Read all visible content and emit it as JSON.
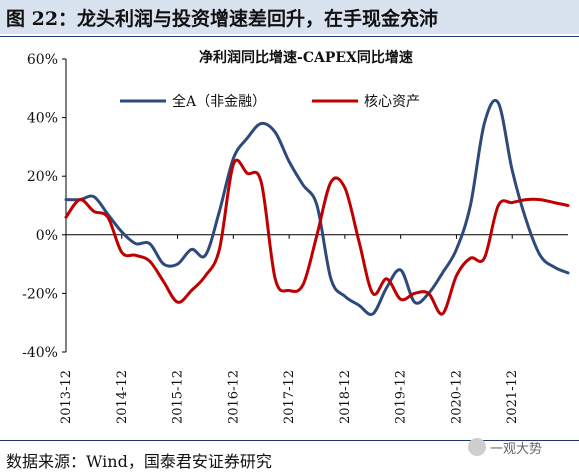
{
  "header": {
    "title": "图 22：龙头利润与投资增速差回升，在手现金充沛"
  },
  "source": "数据来源：Wind，国泰君安证券研究",
  "watermark": "一观大势",
  "colors": {
    "series_a": "#2e4a7a",
    "series_b": "#c00000",
    "title_bg": "#d9e2ef"
  },
  "chart_data": {
    "type": "line",
    "title": "净利润同比增速-CAPEX同比增速",
    "xlabel": "",
    "ylabel": "",
    "ylim": [
      -0.4,
      0.6
    ],
    "yticks": [
      -0.4,
      -0.2,
      0.0,
      0.2,
      0.4,
      0.6
    ],
    "ytick_labels": [
      "-40%",
      "-20%",
      "0%",
      "20%",
      "40%",
      "60%"
    ],
    "xticks": [
      "2013-12",
      "2014-12",
      "2015-12",
      "2016-12",
      "2017-12",
      "2018-12",
      "2019-12",
      "2020-12",
      "2021-12"
    ],
    "xlim": [
      2013.92,
      2022.92
    ],
    "grid": false,
    "legend": {
      "position": "top"
    },
    "series": [
      {
        "name": "全A（非金融）",
        "color": "#2e4a7a",
        "x": [
          2013.92,
          2014.17,
          2014.42,
          2014.67,
          2014.92,
          2015.17,
          2015.42,
          2015.67,
          2015.92,
          2016.17,
          2016.42,
          2016.67,
          2016.92,
          2017.17,
          2017.42,
          2017.67,
          2017.92,
          2018.17,
          2018.42,
          2018.67,
          2018.92,
          2019.17,
          2019.42,
          2019.67,
          2019.92,
          2020.17,
          2020.42,
          2020.67,
          2020.92,
          2021.17,
          2021.42,
          2021.67,
          2021.92,
          2022.17,
          2022.42,
          2022.67,
          2022.92
        ],
        "y": [
          0.12,
          0.12,
          0.13,
          0.07,
          0.01,
          -0.03,
          -0.03,
          -0.1,
          -0.1,
          -0.05,
          -0.07,
          0.08,
          0.26,
          0.33,
          0.38,
          0.35,
          0.25,
          0.17,
          0.1,
          -0.15,
          -0.21,
          -0.24,
          -0.27,
          -0.18,
          -0.12,
          -0.23,
          -0.2,
          -0.13,
          -0.05,
          0.1,
          0.38,
          0.45,
          0.22,
          0.05,
          -0.07,
          -0.11,
          -0.13
        ]
      },
      {
        "name": "核心资产",
        "color": "#c00000",
        "x": [
          2013.92,
          2014.17,
          2014.42,
          2014.67,
          2014.92,
          2015.17,
          2015.42,
          2015.67,
          2015.92,
          2016.17,
          2016.42,
          2016.67,
          2016.92,
          2017.17,
          2017.42,
          2017.67,
          2017.92,
          2018.17,
          2018.42,
          2018.67,
          2018.92,
          2019.17,
          2019.42,
          2019.67,
          2019.92,
          2020.17,
          2020.42,
          2020.67,
          2020.92,
          2021.17,
          2021.42,
          2021.67,
          2021.92,
          2022.17,
          2022.42,
          2022.67,
          2022.92
        ],
        "y": [
          0.06,
          0.12,
          0.08,
          0.06,
          -0.06,
          -0.07,
          -0.09,
          -0.16,
          -0.23,
          -0.19,
          -0.14,
          -0.05,
          0.24,
          0.21,
          0.18,
          -0.15,
          -0.19,
          -0.17,
          0.0,
          0.18,
          0.16,
          -0.02,
          -0.2,
          -0.15,
          -0.22,
          -0.2,
          -0.2,
          -0.27,
          -0.14,
          -0.08,
          -0.08,
          0.1,
          0.11,
          0.12,
          0.12,
          0.11,
          0.1
        ]
      }
    ]
  }
}
